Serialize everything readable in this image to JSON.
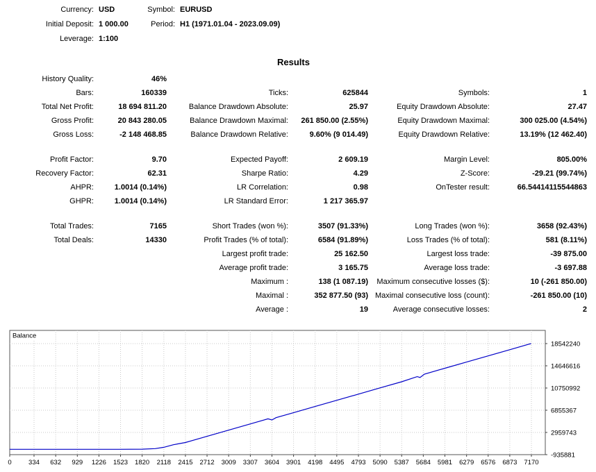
{
  "header": {
    "currency_label": "Currency:",
    "currency_value": "USD",
    "symbol_label": "Symbol:",
    "symbol_value": "EURUSD",
    "initial_deposit_label": "Initial Deposit:",
    "initial_deposit_value": "1 000.00",
    "period_label": "Period:",
    "period_value": "H1 (1971.01.04 - 2023.09.09)",
    "leverage_label": "Leverage:",
    "leverage_value": "1:100"
  },
  "results": {
    "title": "Results",
    "groups": [
      [
        [
          "History Quality:",
          "46%",
          "",
          "",
          "",
          ""
        ],
        [
          "Bars:",
          "160339",
          "Ticks:",
          "625844",
          "Symbols:",
          "1"
        ],
        [
          "Total Net Profit:",
          "18 694 811.20",
          "Balance Drawdown Absolute:",
          "25.97",
          "Equity Drawdown Absolute:",
          "27.47"
        ],
        [
          "Gross Profit:",
          "20 843 280.05",
          "Balance Drawdown Maximal:",
          "261 850.00 (2.55%)",
          "Equity Drawdown Maximal:",
          "300 025.00 (4.54%)"
        ],
        [
          "Gross Loss:",
          "-2 148 468.85",
          "Balance Drawdown Relative:",
          "9.60% (9 014.49)",
          "Equity Drawdown Relative:",
          "13.19% (12 462.40)"
        ]
      ],
      [
        [
          "Profit Factor:",
          "9.70",
          "Expected Payoff:",
          "2 609.19",
          "Margin Level:",
          "805.00%"
        ],
        [
          "Recovery Factor:",
          "62.31",
          "Sharpe Ratio:",
          "4.29",
          "Z-Score:",
          "-29.21 (99.74%)"
        ],
        [
          "AHPR:",
          "1.0014 (0.14%)",
          "LR Correlation:",
          "0.98",
          "OnTester result:",
          "66.54414115544863"
        ],
        [
          "GHPR:",
          "1.0014 (0.14%)",
          "LR Standard Error:",
          "1 217 365.97",
          "",
          ""
        ]
      ],
      [
        [
          "Total Trades:",
          "7165",
          "Short Trades (won %):",
          "3507 (91.33%)",
          "Long Trades (won %):",
          "3658 (92.43%)"
        ],
        [
          "Total Deals:",
          "14330",
          "Profit Trades (% of total):",
          "6584 (91.89%)",
          "Loss Trades (% of total):",
          "581 (8.11%)"
        ],
        [
          "",
          "",
          "Largest profit trade:",
          "25 162.50",
          "Largest loss trade:",
          "-39 875.00"
        ],
        [
          "",
          "",
          "Average profit trade:",
          "3 165.75",
          "Average loss trade:",
          "-3 697.88"
        ],
        [
          "",
          "",
          "Maximum :",
          "138 (1 087.19)",
          "Maximum consecutive losses ($):",
          "10 (-261 850.00)"
        ],
        [
          "",
          "",
          "Maximal :",
          "352 877.50 (93)",
          "Maximal consecutive loss (count):",
          "-261 850.00 (10)"
        ],
        [
          "",
          "",
          "Average :",
          "19",
          "Average consecutive losses:",
          "2"
        ]
      ]
    ]
  },
  "chart_data": {
    "type": "line",
    "title": "Balance",
    "xlabel": "",
    "ylabel": "",
    "x_ticks": [
      0,
      334,
      632,
      929,
      1226,
      1523,
      1820,
      2118,
      2415,
      2712,
      3009,
      3307,
      3604,
      3901,
      4198,
      4495,
      4793,
      5090,
      5387,
      5684,
      5981,
      6279,
      6576,
      6873,
      7170
    ],
    "y_ticks": [
      18542240,
      14646616,
      10750992,
      6855367,
      2959743,
      -935881
    ],
    "xlim": [
      0,
      7361
    ],
    "ylim": [
      -935881,
      20855329
    ],
    "grid": true,
    "legend": false,
    "line_color": "#0000C8",
    "grid_color": "#c9c9c9",
    "border_color": "#555555",
    "series": [
      {
        "name": "Balance",
        "points": [
          [
            0,
            1000
          ],
          [
            800,
            1200
          ],
          [
            1500,
            3000
          ],
          [
            1820,
            20000
          ],
          [
            2000,
            120000
          ],
          [
            2118,
            350000
          ],
          [
            2250,
            800000
          ],
          [
            2415,
            1200000
          ],
          [
            2700,
            2240000
          ],
          [
            3000,
            3340000
          ],
          [
            3300,
            4430000
          ],
          [
            3550,
            5340000
          ],
          [
            3604,
            5150000
          ],
          [
            3660,
            5550000
          ],
          [
            3900,
            6420000
          ],
          [
            4198,
            7510000
          ],
          [
            4495,
            8600000
          ],
          [
            4793,
            9680000
          ],
          [
            5090,
            10770000
          ],
          [
            5387,
            11850000
          ],
          [
            5600,
            12750000
          ],
          [
            5640,
            12600000
          ],
          [
            5700,
            13190000
          ],
          [
            5981,
            14220000
          ],
          [
            6279,
            15310000
          ],
          [
            6576,
            16390000
          ],
          [
            6873,
            17470000
          ],
          [
            7165,
            18542240
          ]
        ]
      }
    ]
  }
}
